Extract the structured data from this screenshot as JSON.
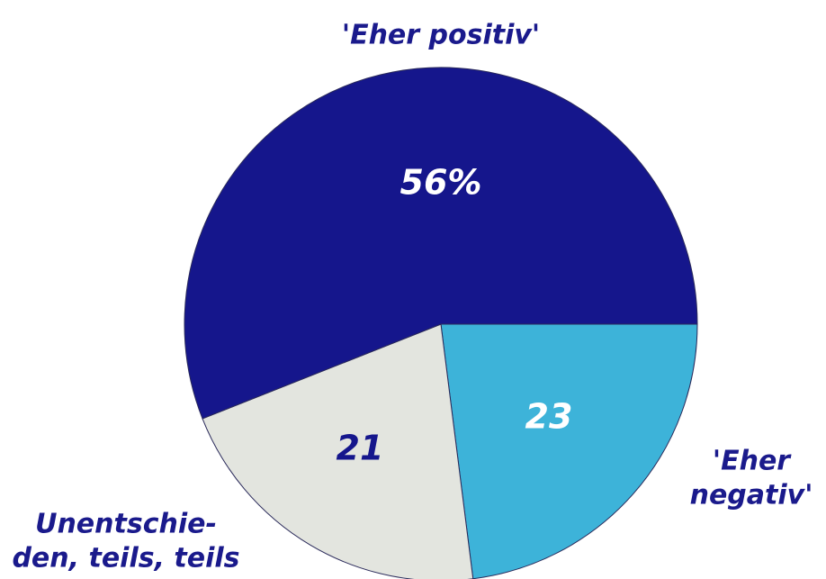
{
  "chart_data": {
    "type": "pie",
    "categories": [
      [
        "'Eher",
        "negativ'"
      ],
      [
        "Unentschie-",
        "den, teils, teils"
      ],
      [
        "'Eher positiv'"
      ]
    ],
    "values": [
      23,
      21,
      56
    ],
    "value_labels": [
      "23",
      "21",
      "56%"
    ],
    "colors": [
      "#3db3d9",
      "#e3e5df",
      "#15168c"
    ]
  }
}
